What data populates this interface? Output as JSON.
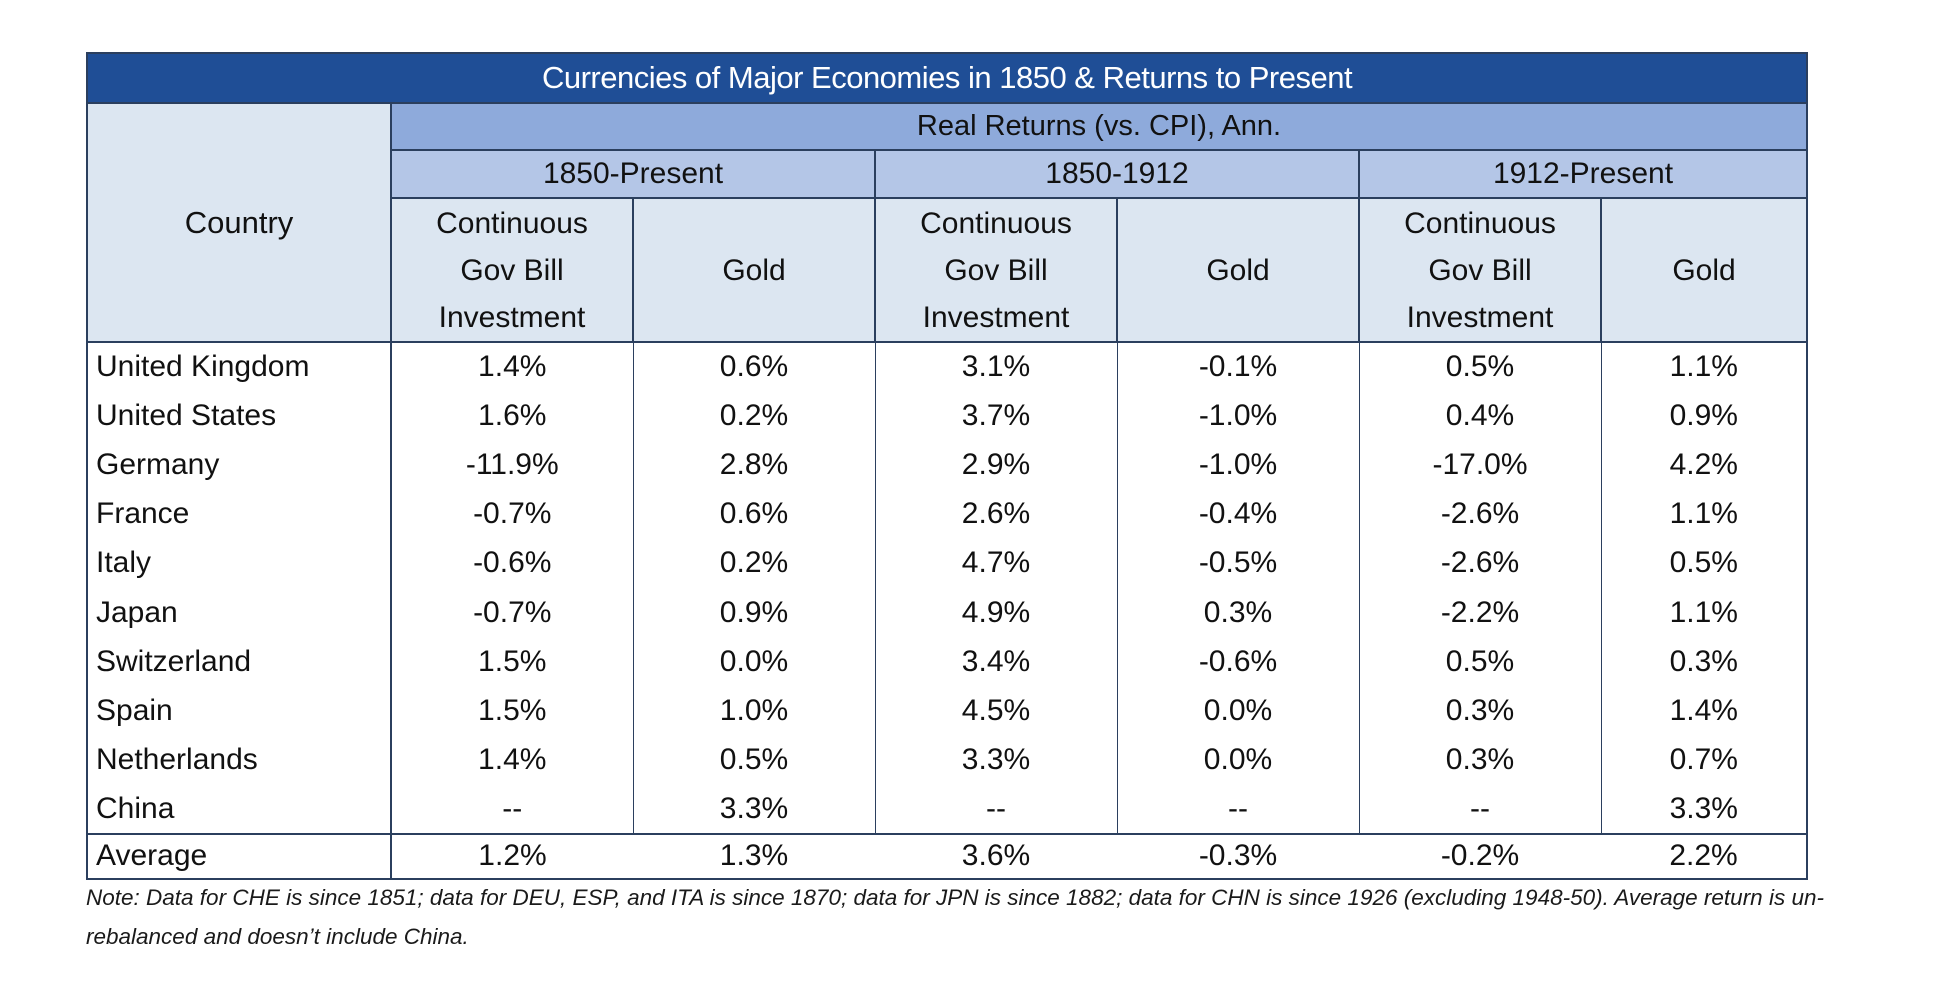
{
  "table": {
    "title": "Currencies of Major Economies in 1850 & Returns to Present",
    "country_header": "Country",
    "group_header": "Real Returns (vs. CPI), Ann.",
    "periods": [
      "1850-Present",
      "1850-1912",
      "1912-Present"
    ],
    "sub_headers": {
      "bill_line1": "Continuous",
      "bill_line2": "Gov Bill",
      "bill_line3": "Investment",
      "gold": "Gold"
    },
    "rows": [
      {
        "country": "United Kingdom",
        "values": [
          "1.4%",
          "0.6%",
          "3.1%",
          "-0.1%",
          "0.5%",
          "1.1%"
        ]
      },
      {
        "country": "United States",
        "values": [
          "1.6%",
          "0.2%",
          "3.7%",
          "-1.0%",
          "0.4%",
          "0.9%"
        ]
      },
      {
        "country": "Germany",
        "values": [
          "-11.9%",
          "2.8%",
          "2.9%",
          "-1.0%",
          "-17.0%",
          "4.2%"
        ]
      },
      {
        "country": "France",
        "values": [
          "-0.7%",
          "0.6%",
          "2.6%",
          "-0.4%",
          "-2.6%",
          "1.1%"
        ]
      },
      {
        "country": "Italy",
        "values": [
          "-0.6%",
          "0.2%",
          "4.7%",
          "-0.5%",
          "-2.6%",
          "0.5%"
        ]
      },
      {
        "country": "Japan",
        "values": [
          "-0.7%",
          "0.9%",
          "4.9%",
          "0.3%",
          "-2.2%",
          "1.1%"
        ]
      },
      {
        "country": "Switzerland",
        "values": [
          "1.5%",
          "0.0%",
          "3.4%",
          "-0.6%",
          "0.5%",
          "0.3%"
        ]
      },
      {
        "country": "Spain",
        "values": [
          "1.5%",
          "1.0%",
          "4.5%",
          "0.0%",
          "0.3%",
          "1.4%"
        ]
      },
      {
        "country": "Netherlands",
        "values": [
          "1.4%",
          "0.5%",
          "3.3%",
          "0.0%",
          "0.3%",
          "0.7%"
        ]
      },
      {
        "country": "China",
        "values": [
          "--",
          "3.3%",
          "--",
          "--",
          "--",
          "3.3%"
        ]
      }
    ],
    "average": {
      "country": "Average",
      "values": [
        "1.2%",
        "1.3%",
        "3.6%",
        "-0.3%",
        "-0.2%",
        "2.2%"
      ]
    }
  },
  "note": "Note: Data for CHE is since 1851; data for DEU, ESP, and ITA is since 1870; data for JPN is since 1882; data for CHN is since 1926 (excluding 1948-50). Average return is un-rebalanced and doesn’t include China.",
  "colors": {
    "title_bg": "#1f4e96",
    "group_bg": "#8eaadb",
    "period_bg": "#b4c6e7",
    "subheader_bg": "#dce6f1"
  }
}
